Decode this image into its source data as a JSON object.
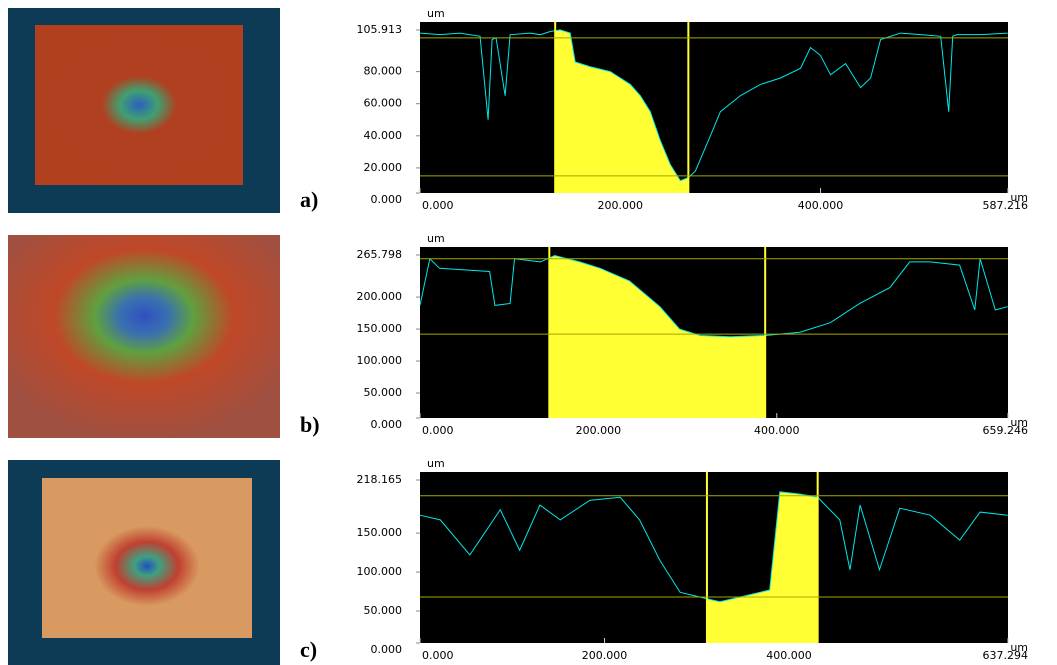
{
  "chart_data": [
    {
      "type": "line",
      "panel_label": "a)",
      "y_unit": "um",
      "x_unit": "um",
      "color": "#00e8e8",
      "x": [
        0,
        20,
        40,
        60,
        68,
        72,
        76,
        85,
        90,
        110,
        120,
        130,
        140,
        150,
        155,
        170,
        190,
        200,
        210,
        220,
        230,
        240,
        250,
        260,
        268,
        275,
        290,
        300,
        320,
        340,
        360,
        380,
        390,
        400,
        410,
        425,
        440,
        450,
        460,
        480,
        500,
        520,
        528,
        532,
        536,
        560,
        587
      ],
      "values": [
        104,
        103,
        104,
        102,
        50,
        100,
        101,
        65,
        103,
        104,
        103,
        105,
        106,
        104,
        86,
        83,
        80,
        76,
        72,
        65,
        55,
        37,
        22,
        12,
        14,
        18,
        40,
        55,
        65,
        72,
        76,
        82,
        95,
        90,
        78,
        85,
        70,
        76,
        100,
        104,
        103,
        102,
        55,
        102,
        103,
        103,
        104
      ],
      "xlim": [
        0,
        587.216
      ],
      "ylim": [
        0,
        105.913
      ],
      "xticks": [
        {
          "value": 0,
          "label": "0.000"
        },
        {
          "value": 200,
          "label": "200.000"
        },
        {
          "value": 400,
          "label": "400.000"
        },
        587.216
      ],
      "yticks": [
        {
          "value": 0,
          "label": "0.000"
        },
        {
          "value": 20,
          "label": "20.000"
        },
        {
          "value": 40,
          "label": "40.000"
        },
        {
          "value": 60,
          "label": "60.000"
        },
        {
          "value": 80,
          "label": "80.000"
        },
        105.913
      ],
      "cursor_x": [
        135,
        268
      ],
      "cursor_y": [
        101,
        15
      ],
      "fill_color": "#ffff33"
    },
    {
      "type": "line",
      "panel_label": "b)",
      "y_unit": "um",
      "x_unit": "um",
      "color": "#00e8e8",
      "x": [
        0,
        11,
        22,
        78,
        84,
        101,
        106,
        135,
        151,
        179,
        202,
        235,
        269,
        291,
        314,
        348,
        387,
        426,
        460,
        493,
        527,
        549,
        572,
        605,
        622,
        628,
        645,
        659
      ],
      "values": [
        187,
        260,
        245,
        240,
        187,
        190,
        260,
        255,
        265,
        255,
        245,
        225,
        185,
        150,
        140,
        138,
        140,
        145,
        160,
        190,
        215,
        255,
        255,
        250,
        180,
        260,
        180,
        185
      ],
      "xlim": [
        0,
        659.246
      ],
      "ylim": [
        0,
        265.798
      ],
      "xticks": [
        {
          "value": 0,
          "label": "0.000"
        },
        {
          "value": 200,
          "label": "200.000"
        },
        {
          "value": 400,
          "label": "400.000"
        },
        659.246
      ],
      "yticks": [
        {
          "value": 0,
          "label": "0.000"
        },
        {
          "value": 50,
          "label": "50.000"
        },
        {
          "value": 100,
          "label": "100.000"
        },
        {
          "value": 150,
          "label": "150.000"
        },
        {
          "value": 200,
          "label": "200.000"
        },
        265.798
      ],
      "cursor_x": [
        145,
        387
      ],
      "cursor_y": [
        260,
        142
      ],
      "fill_color": "#ffff33"
    },
    {
      "type": "line",
      "panel_label": "c)",
      "y_unit": "um",
      "x_unit": "um",
      "color": "#00e8e8",
      "x": [
        0,
        22,
        54,
        87,
        108,
        130,
        152,
        184,
        217,
        238,
        260,
        282,
        303,
        325,
        347,
        379,
        390,
        412,
        431,
        455,
        466,
        477,
        498,
        520,
        553,
        585,
        607,
        637
      ],
      "values": [
        173,
        167,
        122,
        180,
        128,
        186,
        167,
        192,
        196,
        167,
        115,
        74,
        68,
        62,
        68,
        77,
        203,
        200,
        196,
        167,
        103,
        186,
        103,
        182,
        173,
        141,
        177,
        173
      ],
      "xlim": [
        0,
        637.294
      ],
      "ylim": [
        0,
        218.165
      ],
      "xticks": [
        {
          "value": 0,
          "label": "0.000"
        },
        {
          "value": 200,
          "label": "200.000"
        },
        {
          "value": 400,
          "label": "400.000"
        },
        637.294
      ],
      "yticks": [
        {
          "value": 0,
          "label": "0.000"
        },
        {
          "value": 50,
          "label": "50.000"
        },
        {
          "value": 100,
          "label": "100.000"
        },
        {
          "value": 150,
          "label": "150.000"
        },
        218.165
      ],
      "cursor_x": [
        311,
        431
      ],
      "cursor_y": [
        198,
        68
      ],
      "fill_color": "#ffff33"
    }
  ]
}
